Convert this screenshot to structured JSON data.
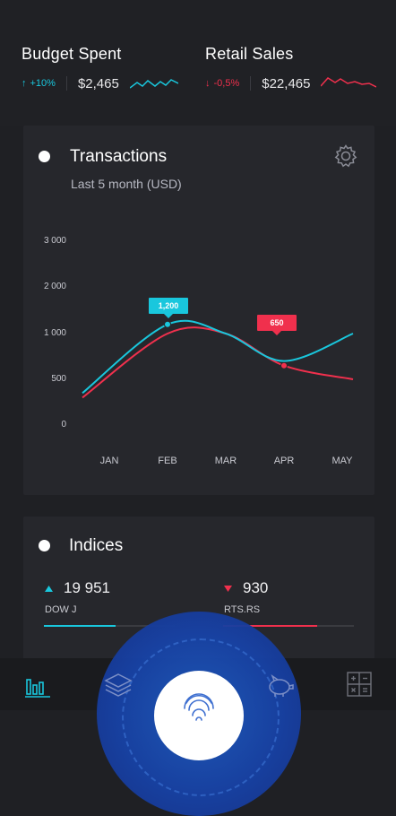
{
  "kpis": {
    "budget": {
      "title": "Budget Spent",
      "change": "+10%",
      "direction": "up",
      "amount": "$2,465",
      "color": "#19c7dd"
    },
    "retail": {
      "title": "Retail Sales",
      "change": "-0,5%",
      "direction": "down",
      "amount": "$22,465",
      "color": "#f0304d"
    }
  },
  "transactions": {
    "title": "Transactions",
    "subtitle": "Last 5 month (USD)",
    "settings_icon": "gear-icon"
  },
  "chart_data": {
    "type": "line",
    "categories": [
      "JAN",
      "FEB",
      "MAR",
      "APR",
      "MAY"
    ],
    "y_ticks": [
      "3 000",
      "2 000",
      "1 000",
      "500",
      "0"
    ],
    "series": [
      {
        "color": "#19c7dd",
        "values": [
          350,
          1200,
          1000,
          700,
          1000
        ]
      },
      {
        "color": "#f0304d",
        "values": [
          300,
          1000,
          1000,
          650,
          500
        ]
      }
    ],
    "annotations": [
      {
        "label": "1,200",
        "category": "FEB",
        "series": 0,
        "color": "#19c7dd"
      },
      {
        "label": "650",
        "category": "APR",
        "series": 1,
        "color": "#f0304d"
      }
    ],
    "grid": false
  },
  "indices": {
    "title": "Indices",
    "items": [
      {
        "value": "19 951",
        "name": "DOW J",
        "direction": "up",
        "color": "#19c7dd",
        "progress": 0.55
      },
      {
        "value": "930",
        "name": "RTS.RS",
        "direction": "down",
        "color": "#f0304d",
        "progress": 0.72
      }
    ]
  },
  "nav": {
    "items": [
      "bar-chart-icon",
      "layers-icon",
      "fingerprint-icon",
      "piggy-bank-icon",
      "calculator-icon"
    ],
    "active": "bar-chart-icon"
  }
}
